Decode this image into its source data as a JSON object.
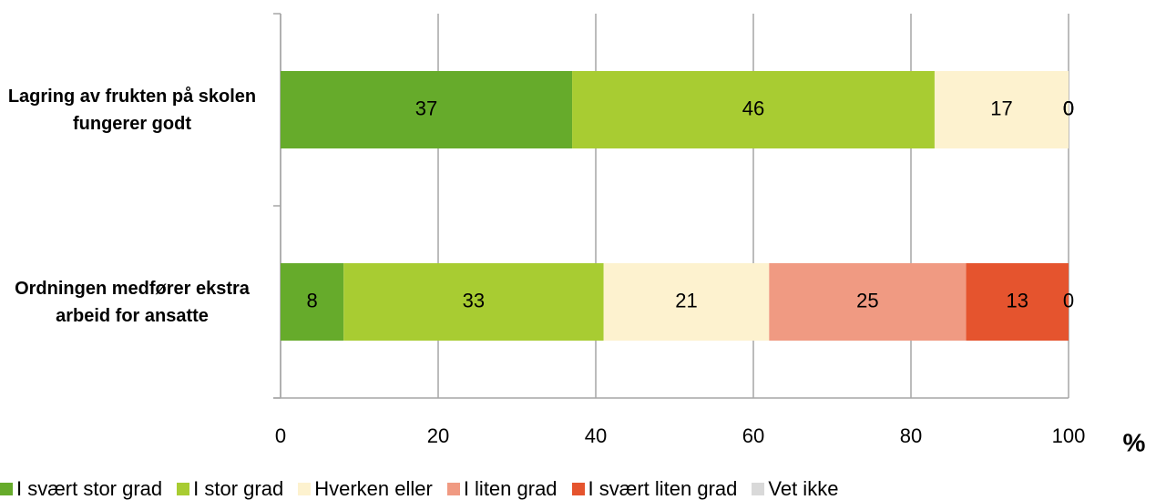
{
  "chart_data": {
    "type": "stacked_bar_horizontal",
    "categories": [
      "Lagring av frukten på skolen fungerer godt",
      "Ordningen medfører ekstra arbeid for ansatte"
    ],
    "series": [
      {
        "name": "I svært stor grad",
        "color": "#66ab2b",
        "values": [
          37,
          8
        ]
      },
      {
        "name": "I stor grad",
        "color": "#a8cc32",
        "values": [
          46,
          33
        ]
      },
      {
        "name": "Hverken eller",
        "color": "#fdf2cf",
        "values": [
          17,
          21
        ]
      },
      {
        "name": "I liten grad",
        "color": "#f09a82",
        "values": [
          0,
          25
        ]
      },
      {
        "name": "I svært liten grad",
        "color": "#e5542e",
        "values": [
          0,
          13
        ]
      },
      {
        "name": "Vet ikke",
        "color": "#d9d9d9",
        "values": [
          0,
          0
        ]
      }
    ],
    "x_axis_label": "%",
    "xlim": [
      0,
      100
    ],
    "xticks": [
      0,
      20,
      40,
      60,
      80,
      100
    ],
    "grid": true,
    "legend": "bottom"
  }
}
